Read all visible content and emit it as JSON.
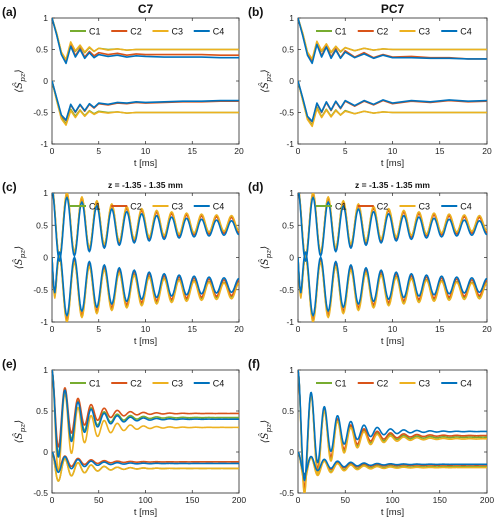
{
  "colors": {
    "C1": "#77AC30",
    "C2": "#D95319",
    "C3": "#EDB120",
    "C4": "#0072BD"
  },
  "ylabel_text": "⟨Ŝ",
  "ylabel_sub": "pz",
  "ylabel_close": "⟩",
  "chart_data": [
    {
      "type": "line",
      "label": "(a)",
      "title": "C7",
      "title_style": "big",
      "xlabel": "t [ms]",
      "xlim": [
        0,
        20
      ],
      "ylim": [
        -1,
        1
      ],
      "xticks": [
        0,
        5,
        10,
        15,
        20
      ],
      "yticks": [
        -1,
        -0.5,
        0,
        0.5,
        1
      ],
      "ytick_labels": [
        "-1",
        "-0.5",
        "0",
        "0.5",
        "1"
      ],
      "legend": [
        "C1",
        "C2",
        "C3",
        "C4"
      ],
      "legend_placement": "top-right",
      "series": [
        {
          "name": "C1",
          "x": [
            0,
            0.5,
            1,
            1.5,
            2,
            2.5,
            3,
            3.5,
            4,
            4.5,
            5,
            6,
            7,
            8,
            9,
            10,
            12,
            14,
            16,
            18,
            20
          ],
          "upper": [
            1,
            0.75,
            0.45,
            0.32,
            0.6,
            0.47,
            0.56,
            0.45,
            0.53,
            0.47,
            0.52,
            0.5,
            0.51,
            0.49,
            0.5,
            0.5,
            0.5,
            0.5,
            0.5,
            0.5,
            0.5
          ],
          "lower": [
            0,
            -0.3,
            -0.58,
            -0.68,
            -0.45,
            -0.56,
            -0.46,
            -0.55,
            -0.47,
            -0.52,
            -0.48,
            -0.5,
            -0.49,
            -0.51,
            -0.5,
            -0.5,
            -0.5,
            -0.5,
            -0.5,
            -0.5,
            -0.5
          ]
        },
        {
          "name": "C2",
          "x": [
            0,
            0.5,
            1,
            1.5,
            2,
            2.5,
            3,
            3.5,
            4,
            4.5,
            5,
            6,
            7,
            8,
            9,
            10,
            12,
            14,
            16,
            18,
            20
          ],
          "upper": [
            1,
            0.74,
            0.44,
            0.3,
            0.58,
            0.4,
            0.52,
            0.38,
            0.47,
            0.4,
            0.45,
            0.42,
            0.44,
            0.41,
            0.43,
            0.42,
            0.42,
            0.42,
            0.42,
            0.41,
            0.41
          ],
          "lower": [
            0,
            -0.28,
            -0.55,
            -0.63,
            -0.38,
            -0.5,
            -0.38,
            -0.48,
            -0.37,
            -0.43,
            -0.36,
            -0.38,
            -0.35,
            -0.36,
            -0.34,
            -0.35,
            -0.34,
            -0.33,
            -0.33,
            -0.32,
            -0.32
          ]
        },
        {
          "name": "C3",
          "x": [
            0,
            0.5,
            1,
            1.5,
            2,
            2.5,
            3,
            3.5,
            4,
            4.5,
            5,
            6,
            7,
            8,
            9,
            10,
            12,
            14,
            16,
            18,
            20
          ],
          "upper": [
            1,
            0.76,
            0.46,
            0.34,
            0.62,
            0.48,
            0.57,
            0.46,
            0.54,
            0.47,
            0.52,
            0.49,
            0.51,
            0.49,
            0.5,
            0.5,
            0.5,
            0.5,
            0.5,
            0.5,
            0.5
          ],
          "lower": [
            0,
            -0.31,
            -0.6,
            -0.7,
            -0.47,
            -0.58,
            -0.47,
            -0.56,
            -0.48,
            -0.53,
            -0.49,
            -0.51,
            -0.49,
            -0.51,
            -0.5,
            -0.5,
            -0.5,
            -0.5,
            -0.5,
            -0.5,
            -0.5
          ]
        },
        {
          "name": "C4",
          "x": [
            0,
            0.5,
            1,
            1.5,
            2,
            2.5,
            3,
            3.5,
            4,
            4.5,
            5,
            6,
            7,
            8,
            9,
            10,
            12,
            14,
            16,
            18,
            20
          ],
          "upper": [
            1,
            0.73,
            0.42,
            0.28,
            0.55,
            0.38,
            0.5,
            0.36,
            0.45,
            0.37,
            0.42,
            0.39,
            0.41,
            0.38,
            0.4,
            0.39,
            0.38,
            0.38,
            0.38,
            0.37,
            0.37
          ],
          "lower": [
            0,
            -0.27,
            -0.54,
            -0.62,
            -0.37,
            -0.49,
            -0.37,
            -0.47,
            -0.36,
            -0.42,
            -0.35,
            -0.37,
            -0.34,
            -0.35,
            -0.33,
            -0.34,
            -0.33,
            -0.32,
            -0.32,
            -0.31,
            -0.31
          ]
        }
      ]
    },
    {
      "type": "line",
      "label": "(b)",
      "title": "PC7",
      "title_style": "big",
      "xlabel": "t [ms]",
      "xlim": [
        0,
        20
      ],
      "ylim": [
        -1,
        1
      ],
      "xticks": [
        0,
        5,
        10,
        15,
        20
      ],
      "yticks": [
        -1,
        -0.5,
        0,
        0.5,
        1
      ],
      "ytick_labels": [
        "-1",
        "-0.5",
        "0",
        "0.5",
        "1"
      ],
      "legend": [
        "C1",
        "C2",
        "C3",
        "C4"
      ],
      "legend_placement": "top-right",
      "series": [
        {
          "name": "C1",
          "x": [
            0,
            0.5,
            1,
            1.5,
            2,
            2.5,
            3,
            3.5,
            4,
            4.5,
            5,
            6,
            7,
            8,
            9,
            10,
            12,
            14,
            16,
            18,
            20
          ],
          "upper": [
            1,
            0.75,
            0.45,
            0.33,
            0.62,
            0.47,
            0.58,
            0.45,
            0.55,
            0.46,
            0.53,
            0.48,
            0.52,
            0.49,
            0.51,
            0.5,
            0.5,
            0.5,
            0.5,
            0.5,
            0.5
          ],
          "lower": [
            0,
            -0.3,
            -0.6,
            -0.7,
            -0.42,
            -0.57,
            -0.45,
            -0.56,
            -0.46,
            -0.54,
            -0.47,
            -0.52,
            -0.48,
            -0.51,
            -0.49,
            -0.5,
            -0.5,
            -0.5,
            -0.5,
            -0.5,
            -0.5
          ]
        },
        {
          "name": "C2",
          "x": [
            0,
            0.5,
            1,
            1.5,
            2,
            2.5,
            3,
            3.5,
            4,
            4.5,
            5,
            6,
            7,
            8,
            9,
            10,
            12,
            14,
            16,
            18,
            20
          ],
          "upper": [
            1,
            0.73,
            0.43,
            0.3,
            0.6,
            0.4,
            0.56,
            0.38,
            0.51,
            0.37,
            0.48,
            0.38,
            0.45,
            0.37,
            0.42,
            0.38,
            0.39,
            0.37,
            0.37,
            0.35,
            0.35
          ],
          "lower": [
            0,
            -0.28,
            -0.57,
            -0.65,
            -0.36,
            -0.5,
            -0.34,
            -0.47,
            -0.33,
            -0.44,
            -0.32,
            -0.4,
            -0.32,
            -0.38,
            -0.31,
            -0.36,
            -0.32,
            -0.34,
            -0.31,
            -0.33,
            -0.32
          ]
        },
        {
          "name": "C3",
          "x": [
            0,
            0.5,
            1,
            1.5,
            2,
            2.5,
            3,
            3.5,
            4,
            4.5,
            5,
            6,
            7,
            8,
            9,
            10,
            12,
            14,
            16,
            18,
            20
          ],
          "upper": [
            1,
            0.76,
            0.46,
            0.35,
            0.63,
            0.48,
            0.59,
            0.46,
            0.55,
            0.47,
            0.53,
            0.48,
            0.52,
            0.49,
            0.51,
            0.5,
            0.5,
            0.5,
            0.5,
            0.5,
            0.5
          ],
          "lower": [
            0,
            -0.31,
            -0.61,
            -0.72,
            -0.44,
            -0.58,
            -0.46,
            -0.57,
            -0.47,
            -0.54,
            -0.48,
            -0.52,
            -0.48,
            -0.51,
            -0.49,
            -0.5,
            -0.5,
            -0.5,
            -0.5,
            -0.5,
            -0.5
          ]
        },
        {
          "name": "C4",
          "x": [
            0,
            0.5,
            1,
            1.5,
            2,
            2.5,
            3,
            3.5,
            4,
            4.5,
            5,
            6,
            7,
            8,
            9,
            10,
            12,
            14,
            16,
            18,
            20
          ],
          "upper": [
            1,
            0.72,
            0.41,
            0.28,
            0.58,
            0.38,
            0.54,
            0.36,
            0.49,
            0.36,
            0.46,
            0.37,
            0.43,
            0.36,
            0.41,
            0.37,
            0.37,
            0.36,
            0.36,
            0.35,
            0.35
          ],
          "lower": [
            0,
            -0.27,
            -0.56,
            -0.64,
            -0.35,
            -0.49,
            -0.33,
            -0.46,
            -0.32,
            -0.43,
            -0.31,
            -0.39,
            -0.31,
            -0.37,
            -0.3,
            -0.35,
            -0.31,
            -0.33,
            -0.3,
            -0.32,
            -0.31
          ]
        }
      ]
    },
    {
      "type": "line",
      "label": "(c)",
      "title": "z = -1.35 - 1.35 mm",
      "title_style": "small",
      "xlabel": "t [ms]",
      "xlim": [
        0,
        20
      ],
      "ylim": [
        -1,
        1
      ],
      "xticks": [
        0,
        5,
        10,
        15,
        20
      ],
      "yticks": [
        -1,
        -0.5,
        0,
        0.5,
        1
      ],
      "ytick_labels": [
        "-1",
        "-0.5",
        "0",
        "0.5",
        "1"
      ],
      "legend": [
        "C1",
        "C2",
        "C3",
        "C4"
      ],
      "legend_placement": "top-right",
      "osc": {
        "period": 1.6,
        "decay": 0.04,
        "eq_upper": [
          0.52,
          0.5,
          0.53,
          0.46
        ],
        "eq_lower": [
          -0.5,
          -0.47,
          -0.52,
          -0.43
        ],
        "amp_upper": 0.32,
        "amp_lower": 0.3,
        "min_amp": [
          0.06,
          0.07,
          0.07,
          0.06
        ]
      }
    },
    {
      "type": "line",
      "label": "(d)",
      "title": "z = -1.35 - 1.35 mm",
      "title_style": "small",
      "xlabel": "t [ms]",
      "xlim": [
        0,
        20
      ],
      "ylim": [
        -1,
        1
      ],
      "xticks": [
        0,
        5,
        10,
        15,
        20
      ],
      "yticks": [
        -1,
        -0.5,
        0,
        0.5,
        1
      ],
      "ytick_labels": [
        "-1",
        "-0.5",
        "0",
        "0.5",
        "1"
      ],
      "legend": [
        "C1",
        "C2",
        "C3",
        "C4"
      ],
      "legend_placement": "top-right",
      "osc": {
        "period": 1.6,
        "decay": 0.04,
        "eq_upper": [
          0.52,
          0.5,
          0.53,
          0.46
        ],
        "eq_lower": [
          -0.5,
          -0.47,
          -0.52,
          -0.43
        ],
        "amp_upper": 0.32,
        "amp_lower": 0.3,
        "min_amp": [
          0.06,
          0.07,
          0.07,
          0.06
        ]
      }
    },
    {
      "type": "line",
      "label": "(e)",
      "title": "",
      "title_style": "none",
      "xlabel": "t [ms]",
      "xlim": [
        0,
        200
      ],
      "ylim": [
        -0.5,
        1
      ],
      "xticks": [
        0,
        50,
        100,
        150,
        200
      ],
      "yticks": [
        -0.5,
        0,
        0.5,
        1
      ],
      "ytick_labels": [
        "-0.5",
        "0",
        "0.5",
        "1"
      ],
      "legend": [
        "C1",
        "C2",
        "C3",
        "C4"
      ],
      "legend_placement": "top-right",
      "damp": {
        "period": 14,
        "tau": 12,
        "eq_upper": [
          0.42,
          0.47,
          0.3,
          0.4
        ],
        "eq_lower": [
          -0.2,
          -0.12,
          -0.2,
          -0.14
        ],
        "amp_upper": 0.45,
        "amp_lower": 0.3
      }
    },
    {
      "type": "line",
      "label": "(f)",
      "title": "",
      "title_style": "none",
      "xlabel": "t [ms]",
      "xlim": [
        0,
        200
      ],
      "ylim": [
        -0.5,
        1
      ],
      "xticks": [
        0,
        50,
        100,
        150,
        200
      ],
      "yticks": [
        -0.5,
        0,
        0.5,
        1
      ],
      "ytick_labels": [
        "-0.5",
        "0",
        "0.5",
        "1"
      ],
      "legend": [
        "C1",
        "C2",
        "C3",
        "C4"
      ],
      "legend_placement": "top-right",
      "damp": {
        "period": 14,
        "tau": 14,
        "eq_upper": [
          0.18,
          0.2,
          0.16,
          0.25
        ],
        "eq_lower": [
          -0.18,
          -0.16,
          -0.19,
          -0.15
        ],
        "amp_upper": 0.4,
        "amp_lower": 0.28
      }
    }
  ]
}
